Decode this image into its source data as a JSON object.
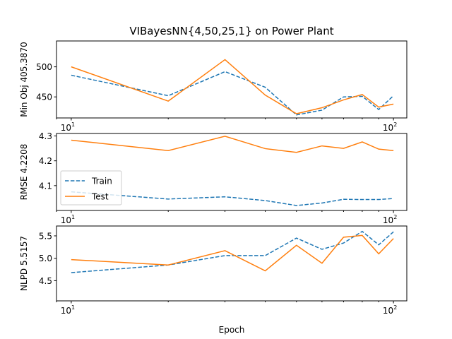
{
  "figure": {
    "title": "VIBayesNN{4,50,25,1} on Power Plant",
    "xlabel": "Epoch",
    "colors": {
      "train": "#1f77b4",
      "test": "#ff7f0e"
    }
  },
  "chart_data": [
    {
      "type": "line",
      "title": "VIBayesNN{4,50,25,1} on Power Plant",
      "xlabel": "",
      "ylabel": "Min Obj 405.3870",
      "xscale": "log",
      "xlim": [
        9,
        110
      ],
      "ylim": [
        415,
        543
      ],
      "x_ticks": [
        10,
        100
      ],
      "x_tick_labels": [
        {
          "base": "10",
          "exp": "1"
        },
        {
          "base": "10",
          "exp": "2"
        }
      ],
      "y_ticks": [
        450,
        500
      ],
      "y_tick_labels": [
        "450",
        "500"
      ],
      "x": [
        10,
        20,
        30,
        40,
        50,
        60,
        70,
        80,
        90,
        100
      ],
      "series": [
        {
          "name": "Train",
          "style": "dashed",
          "color": "#1f77b4",
          "values": [
            486,
            452,
            492,
            466,
            420,
            428,
            450,
            451,
            429,
            452
          ]
        },
        {
          "name": "Test",
          "style": "solid",
          "color": "#ff7f0e",
          "values": [
            500,
            443,
            512,
            453,
            422,
            432,
            445,
            454,
            433,
            438
          ]
        }
      ],
      "legend": null
    },
    {
      "type": "line",
      "title": "",
      "xlabel": "",
      "ylabel": "RMSE 4.2208",
      "xscale": "log",
      "xlim": [
        9,
        110
      ],
      "ylim": [
        4.0,
        4.31
      ],
      "x_ticks": [
        10,
        100
      ],
      "x_tick_labels": [
        {
          "base": "10",
          "exp": "1"
        },
        {
          "base": "10",
          "exp": "2"
        }
      ],
      "y_ticks": [
        4.1,
        4.2,
        4.3
      ],
      "y_tick_labels": [
        "4.1",
        "4.2",
        "4.3"
      ],
      "x": [
        10,
        20,
        30,
        40,
        50,
        60,
        70,
        80,
        90,
        100
      ],
      "series": [
        {
          "name": "Train",
          "style": "dashed",
          "color": "#1f77b4",
          "values": [
            4.075,
            4.046,
            4.055,
            4.04,
            4.02,
            4.03,
            4.045,
            4.044,
            4.044,
            4.048
          ]
        },
        {
          "name": "Test",
          "style": "solid",
          "color": "#ff7f0e",
          "values": [
            4.283,
            4.241,
            4.299,
            4.249,
            4.234,
            4.26,
            4.25,
            4.276,
            4.247,
            4.241
          ]
        }
      ],
      "legend": {
        "position": "lower-left",
        "entries": [
          "Train",
          "Test"
        ]
      }
    },
    {
      "type": "line",
      "title": "",
      "xlabel": "Epoch",
      "ylabel": "NLPD 5.5157",
      "xscale": "log",
      "xlim": [
        9,
        110
      ],
      "ylim": [
        4.05,
        5.72
      ],
      "x_ticks": [
        10,
        100
      ],
      "x_tick_labels": [
        {
          "base": "10",
          "exp": "1"
        },
        {
          "base": "10",
          "exp": "2"
        }
      ],
      "y_ticks": [
        4.5,
        5.0,
        5.5
      ],
      "y_tick_labels": [
        "4.5",
        "5.0",
        "5.5"
      ],
      "x": [
        10,
        20,
        30,
        40,
        50,
        60,
        70,
        80,
        90,
        100
      ],
      "series": [
        {
          "name": "Train",
          "style": "dashed",
          "color": "#1f77b4",
          "values": [
            4.68,
            4.85,
            5.06,
            5.06,
            5.45,
            5.2,
            5.34,
            5.6,
            5.3,
            5.59
          ]
        },
        {
          "name": "Test",
          "style": "solid",
          "color": "#ff7f0e",
          "values": [
            4.97,
            4.85,
            5.17,
            4.72,
            5.29,
            4.89,
            5.47,
            5.51,
            5.1,
            5.44
          ]
        }
      ],
      "legend": null
    }
  ]
}
